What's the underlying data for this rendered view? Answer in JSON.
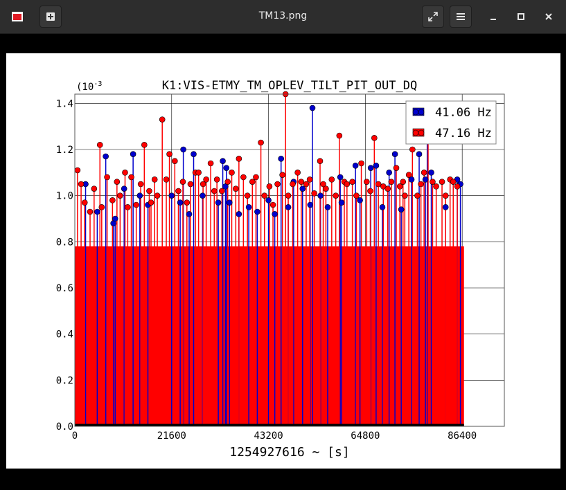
{
  "window": {
    "title": "TM13.png",
    "app_icon": "image-viewer-icon",
    "buttons": [
      "new-tab-icon",
      "fullscreen-icon",
      "menu-icon",
      "minimize-icon",
      "maximize-icon",
      "close-icon"
    ]
  },
  "colors": {
    "series1": "#0000cc",
    "series2": "#ff0000",
    "titlebar": "#2d2d2d"
  },
  "chart_data": {
    "type": "scatter",
    "title": "K1:VIS-ETMY_TM_OPLEV_TILT_PIT_OUT_DQ",
    "xlabel": "1254927616 ~ [s]",
    "ylabel": "",
    "y_exponent_label": "(10",
    "y_exponent_power": "-3",
    "xlim": [
      0,
      95800
    ],
    "ylim": [
      0.0,
      1.44
    ],
    "xticks": [
      0,
      21600,
      43200,
      64800,
      86400
    ],
    "xtick_labels": [
      "0",
      "21600",
      "43200",
      "64800",
      "86400"
    ],
    "yticks": [
      0.0,
      0.2,
      0.4,
      0.6,
      0.8,
      1.0,
      1.2,
      1.4
    ],
    "ytick_labels": [
      "0.0",
      "0.2",
      "0.4",
      "0.6",
      "0.8",
      "1.0",
      "1.2",
      "1.4"
    ],
    "grid": true,
    "legend_position": "top-right",
    "style": "stem",
    "series": [
      {
        "name": "41.06 Hz",
        "color": "#0000cc",
        "x": [
          2400,
          5000,
          6900,
          8600,
          9000,
          11000,
          13000,
          14500,
          16300,
          21600,
          23500,
          24200,
          25500,
          26500,
          28500,
          32000,
          33000,
          33600,
          33800,
          34500,
          36600,
          38800,
          40700,
          43200,
          44600,
          46000,
          47600,
          48800,
          50800,
          52500,
          53000,
          54800,
          56400,
          59200,
          59500,
          62600,
          63600,
          66000,
          67200,
          68600,
          70100,
          71400,
          72800,
          75100,
          76800,
          78200,
          78600,
          79500,
          82700,
          85300,
          86000
        ],
        "y": [
          1.05,
          0.93,
          1.17,
          0.88,
          0.9,
          1.03,
          1.18,
          1.0,
          0.96,
          1.0,
          0.97,
          1.2,
          0.92,
          1.18,
          1.0,
          0.97,
          1.15,
          1.04,
          1.12,
          0.97,
          0.92,
          0.95,
          0.93,
          0.98,
          0.92,
          1.16,
          0.95,
          1.06,
          1.03,
          0.96,
          1.38,
          1.0,
          0.95,
          1.08,
          0.97,
          1.13,
          0.98,
          1.12,
          1.13,
          0.95,
          1.1,
          1.18,
          0.94,
          1.07,
          1.18,
          1.07,
          1.25,
          1.1,
          0.95,
          1.07,
          1.05
        ]
      },
      {
        "name": "47.16 Hz",
        "color": "#ff0000",
        "x": [
          600,
          1400,
          2200,
          3400,
          4300,
          5600,
          6000,
          7200,
          8400,
          9400,
          10100,
          11200,
          11800,
          12600,
          13700,
          14700,
          15500,
          16600,
          17000,
          17800,
          18400,
          19500,
          20400,
          21100,
          22300,
          23100,
          24100,
          25000,
          25800,
          26900,
          27600,
          28600,
          29300,
          30300,
          31100,
          31700,
          32800,
          34100,
          35000,
          35900,
          36600,
          37600,
          38500,
          39600,
          40400,
          41500,
          42300,
          43400,
          44200,
          45200,
          46300,
          47000,
          47600,
          48600,
          49700,
          50500,
          51600,
          52400,
          53400,
          54700,
          55400,
          56000,
          57300,
          58200,
          59000,
          60100,
          60700,
          61900,
          62800,
          63900,
          65100,
          65900,
          66800,
          67700,
          68800,
          69800,
          70600,
          71700,
          72500,
          73200,
          73600,
          74500,
          75300,
          76400,
          77200,
          77900,
          78800,
          79800,
          80600,
          81900,
          82700,
          83700,
          84400,
          85300
        ],
        "y": [
          1.11,
          1.05,
          0.97,
          0.93,
          1.03,
          1.22,
          0.95,
          1.08,
          0.98,
          1.06,
          1.0,
          1.1,
          0.95,
          1.08,
          0.96,
          1.05,
          1.22,
          1.02,
          0.97,
          1.07,
          1.0,
          1.33,
          1.07,
          1.18,
          1.15,
          1.02,
          1.06,
          0.97,
          1.05,
          1.1,
          1.1,
          1.05,
          1.07,
          1.14,
          1.02,
          1.07,
          1.02,
          1.06,
          1.1,
          1.03,
          1.16,
          1.08,
          1.0,
          1.06,
          1.08,
          1.23,
          1.0,
          1.04,
          0.96,
          1.05,
          1.09,
          1.44,
          1.0,
          1.05,
          1.1,
          1.06,
          1.05,
          1.07,
          1.01,
          1.15,
          1.05,
          1.03,
          1.07,
          1.0,
          1.26,
          1.06,
          1.05,
          1.06,
          1.0,
          1.14,
          1.06,
          1.02,
          1.25,
          1.05,
          1.04,
          1.03,
          1.06,
          1.12,
          1.04,
          1.06,
          1.0,
          1.09,
          1.2,
          1.0,
          1.05,
          1.1,
          1.26,
          1.06,
          1.04,
          1.06,
          1.0,
          1.07,
          1.06,
          1.04
        ]
      }
    ]
  }
}
